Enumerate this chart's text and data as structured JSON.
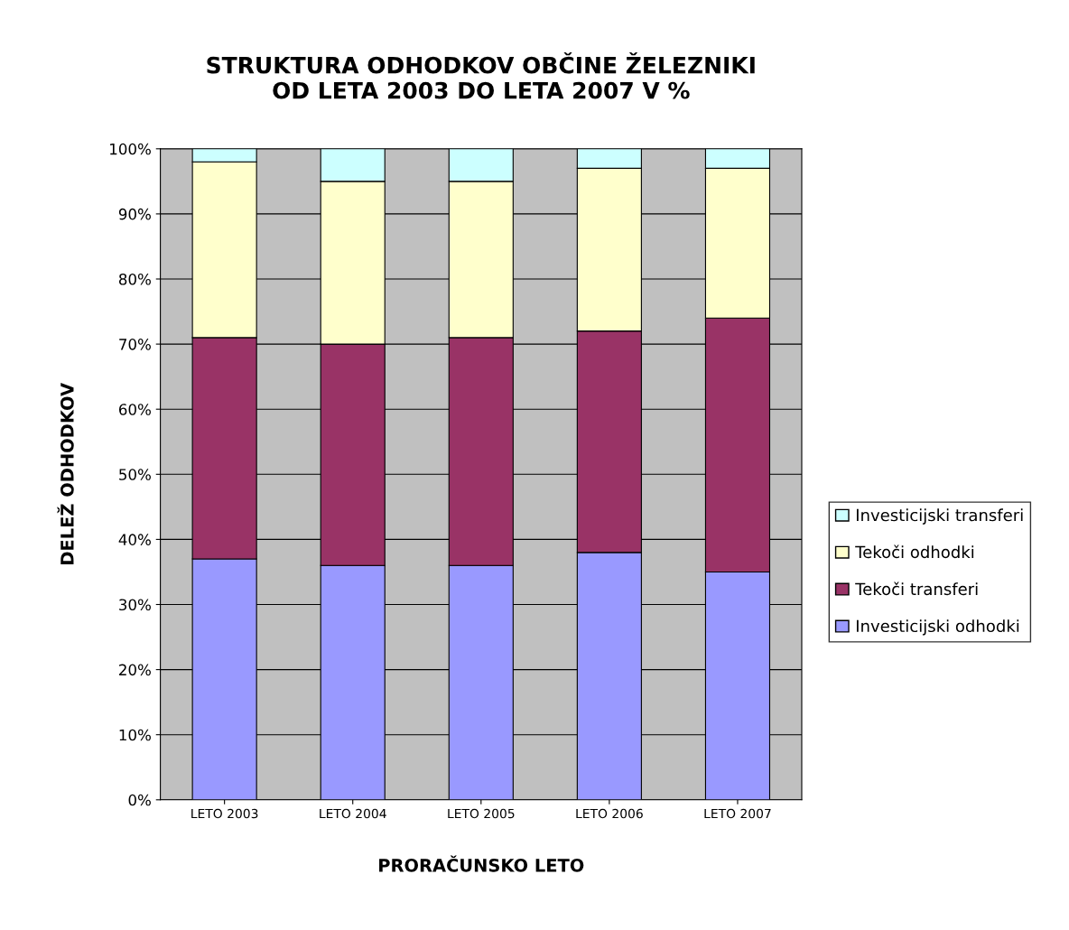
{
  "chart_data": {
    "type": "bar",
    "stacked": true,
    "title": "STRUKTURA ODHODKOV OBČINE ŽELEZNIKI\nOD LETA 2003 DO LETA 2007 V %",
    "xlabel": "PRORAČUNSKO LETO",
    "ylabel": "DELEŽ ODHODKOV",
    "categories": [
      "LETO 2003",
      "LETO 2004",
      "LETO 2005",
      "LETO 2006",
      "LETO 2007"
    ],
    "series": [
      {
        "name": "Investicijski odhodki",
        "color": "#9999ff",
        "values": [
          37,
          36,
          36,
          38,
          35
        ]
      },
      {
        "name": "Tekoči transferi",
        "color": "#993366",
        "values": [
          34,
          34,
          35,
          34,
          39
        ]
      },
      {
        "name": "Tekoči odhodki",
        "color": "#ffffcc",
        "values": [
          27,
          25,
          24,
          25,
          23
        ]
      },
      {
        "name": "Investicijski transferi",
        "color": "#ccffff",
        "values": [
          2,
          5,
          5,
          3,
          3
        ]
      }
    ],
    "ylim": [
      0,
      100
    ],
    "yticks": [
      {
        "value": 0,
        "label": "0%"
      },
      {
        "value": 10,
        "label": "10%"
      },
      {
        "value": 20,
        "label": "20%"
      },
      {
        "value": 30,
        "label": "30%"
      },
      {
        "value": 40,
        "label": "40%"
      },
      {
        "value": 50,
        "label": "50%"
      },
      {
        "value": 60,
        "label": "60%"
      },
      {
        "value": 70,
        "label": "70%"
      },
      {
        "value": 80,
        "label": "80%"
      },
      {
        "value": 90,
        "label": "90%"
      },
      {
        "value": 100,
        "label": "100%"
      }
    ],
    "grid": "y",
    "legend": "right"
  }
}
